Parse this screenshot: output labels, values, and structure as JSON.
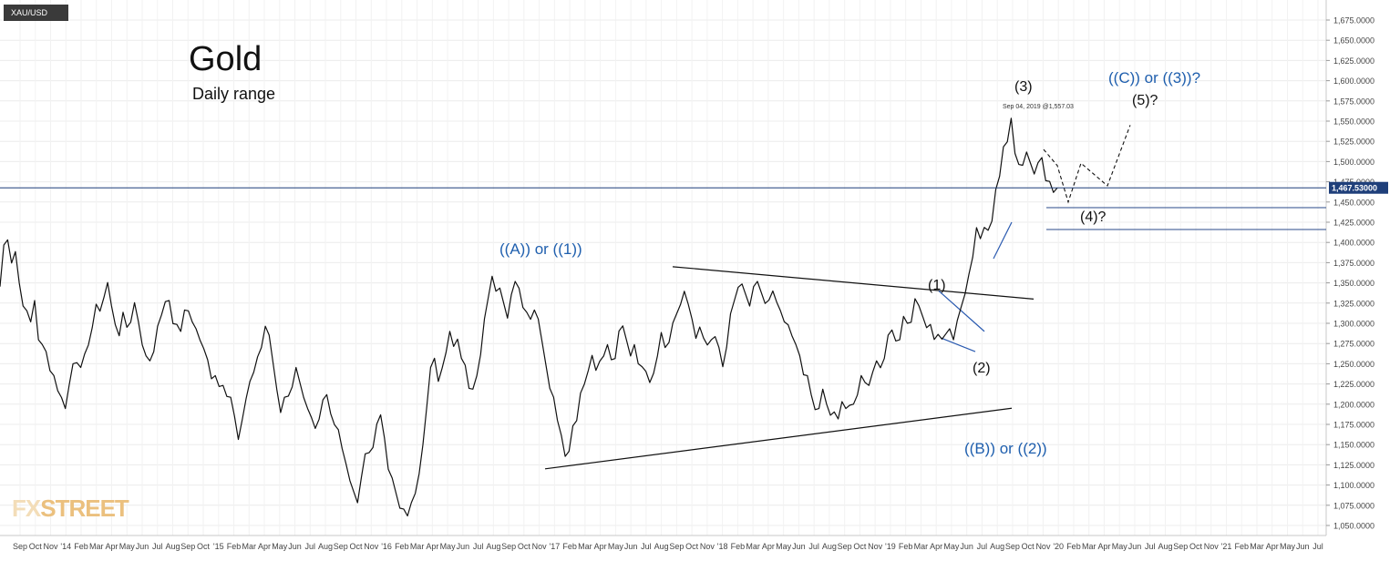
{
  "symbol": "XAU/USD",
  "title": "Gold",
  "subtitle": "Daily range",
  "watermark": "FXSTREET",
  "chart_data": {
    "type": "line",
    "y_range": [
      1040,
      1690
    ],
    "y_ticks": [
      "1,675.0000",
      "1,650.0000",
      "1,625.0000",
      "1,600.0000",
      "1,575.0000",
      "1,550.0000",
      "1,525.0000",
      "1,500.0000",
      "1,475.0000",
      "1,450.0000",
      "1,425.0000",
      "1,400.0000",
      "1,375.0000",
      "1,350.0000",
      "1,325.0000",
      "1,300.0000",
      "1,275.0000",
      "1,250.0000",
      "1,225.0000",
      "1,200.0000",
      "1,175.0000",
      "1,150.0000",
      "1,125.0000",
      "1,100.0000",
      "1,075.0000",
      "1,050.0000"
    ],
    "x_ticks": [
      "Sep",
      "Oct",
      "Nov",
      "'14",
      "Feb",
      "Mar",
      "Apr",
      "May",
      "Jun",
      "Jul",
      "Aug",
      "Sep",
      "Oct",
      "'15",
      "Feb",
      "Mar",
      "Apr",
      "May",
      "Jun",
      "Jul",
      "Aug",
      "Sep",
      "Oct",
      "Nov",
      "'16",
      "Feb",
      "Mar",
      "Apr",
      "May",
      "Jun",
      "Jul",
      "Aug",
      "Sep",
      "Oct",
      "Nov",
      "'17",
      "Feb",
      "Mar",
      "Apr",
      "May",
      "Jun",
      "Jul",
      "Aug",
      "Sep",
      "Oct",
      "Nov",
      "'18",
      "Feb",
      "Mar",
      "Apr",
      "May",
      "Jun",
      "Jul",
      "Aug",
      "Sep",
      "Oct",
      "Nov",
      "'19",
      "Feb",
      "Mar",
      "Apr",
      "May",
      "Jun",
      "Jul",
      "Aug",
      "Sep",
      "Oct",
      "Nov",
      "'20",
      "Feb",
      "Mar",
      "Apr",
      "May",
      "Jun",
      "Jul",
      "Aug",
      "Sep",
      "Oct",
      "Nov",
      "'21",
      "Feb",
      "Mar",
      "Apr",
      "May",
      "Jun",
      "Jul"
    ],
    "last_price": 1467.53,
    "last_price_label": "1,467.53000",
    "grid": true,
    "series": [
      {
        "values": [
          1340,
          1395,
          1405,
          1380,
          1385,
          1350,
          1325,
          1310,
          1300,
          1330,
          1285,
          1270,
          1265,
          1245,
          1230,
          1215,
          1210,
          1200,
          1220,
          1250,
          1255,
          1240,
          1260,
          1275,
          1300,
          1320,
          1315,
          1335,
          1345,
          1320,
          1300,
          1290,
          1310,
          1295,
          1305,
          1320,
          1300,
          1275,
          1265,
          1250,
          1265,
          1300,
          1305,
          1325,
          1330,
          1305,
          1295,
          1290,
          1320,
          1310,
          1300,
          1295,
          1285,
          1265,
          1255,
          1235,
          1230,
          1220,
          1225,
          1215,
          1205,
          1185,
          1160,
          1175,
          1205,
          1230,
          1245,
          1255,
          1270,
          1300,
          1280,
          1250,
          1220,
          1195,
          1205,
          1210,
          1225,
          1240,
          1225,
          1210,
          1200,
          1180,
          1170,
          1185,
          1200,
          1210,
          1190,
          1180,
          1165,
          1145,
          1130,
          1100,
          1090,
          1080,
          1115,
          1135,
          1140,
          1150,
          1170,
          1185,
          1160,
          1125,
          1105,
          1090,
          1075,
          1065,
          1060,
          1080,
          1095,
          1110,
          1150,
          1200,
          1240,
          1255,
          1230,
          1250,
          1260,
          1290,
          1275,
          1275,
          1255,
          1250,
          1225,
          1215,
          1235,
          1265,
          1300,
          1330,
          1360,
          1345,
          1340,
          1325,
          1310,
          1330,
          1350,
          1345,
          1325,
          1310,
          1305,
          1320,
          1300,
          1275,
          1250,
          1225,
          1205,
          1180,
          1165,
          1130,
          1140,
          1175,
          1185,
          1210,
          1225,
          1245,
          1255,
          1240,
          1255,
          1265,
          1270,
          1255,
          1260,
          1285,
          1295,
          1280,
          1265,
          1270,
          1250,
          1250,
          1235,
          1225,
          1240,
          1265,
          1285,
          1270,
          1280,
          1295,
          1310,
          1325,
          1345,
          1320,
          1305,
          1285,
          1290,
          1280,
          1275,
          1285,
          1280,
          1270,
          1250,
          1265,
          1310,
          1330,
          1350,
          1345,
          1335,
          1325,
          1340,
          1350,
          1340,
          1330,
          1325,
          1340,
          1330,
          1310,
          1300,
          1300,
          1290,
          1270,
          1260,
          1240,
          1230,
          1210,
          1195,
          1200,
          1215,
          1200,
          1190,
          1185,
          1180,
          1205,
          1200,
          1195,
          1200,
          1215,
          1230,
          1225,
          1225,
          1245,
          1250,
          1245,
          1260,
          1280,
          1290,
          1280,
          1285,
          1305,
          1300,
          1305,
          1325,
          1320,
          1310,
          1300,
          1295,
          1280,
          1290,
          1275,
          1285,
          1295,
          1285,
          1300,
          1320,
          1340,
          1355,
          1380,
          1420,
          1410,
          1415,
          1415,
          1430,
          1460,
          1480,
          1520,
          1530,
          1550,
          1510,
          1500,
          1490,
          1510,
          1500,
          1490,
          1495,
          1505,
          1480,
          1470,
          1460,
          1467.5
        ]
      },
      {
        "name": "projection",
        "values": [
          1515,
          1495,
          1450,
          1498,
          1470,
          1545
        ]
      }
    ],
    "annotations": [
      "((A)) or ((1))",
      "(1)",
      "(2)",
      "(3)",
      "(4)?",
      "(5)?",
      "((C)) or ((3))?",
      "((B)) or ((2))",
      "Sep 04, 2019 @1,557.03"
    ],
    "support_levels": [
      1443,
      1416
    ],
    "upper_trendline": [
      1370,
      1330
    ],
    "lower_trendline": [
      1120,
      1195
    ]
  },
  "colors": {
    "price_line": "#111111",
    "wave_label": "#1f5fae",
    "level_line": "#2a4a8a",
    "last_price_bg": "#1f3f7a"
  }
}
